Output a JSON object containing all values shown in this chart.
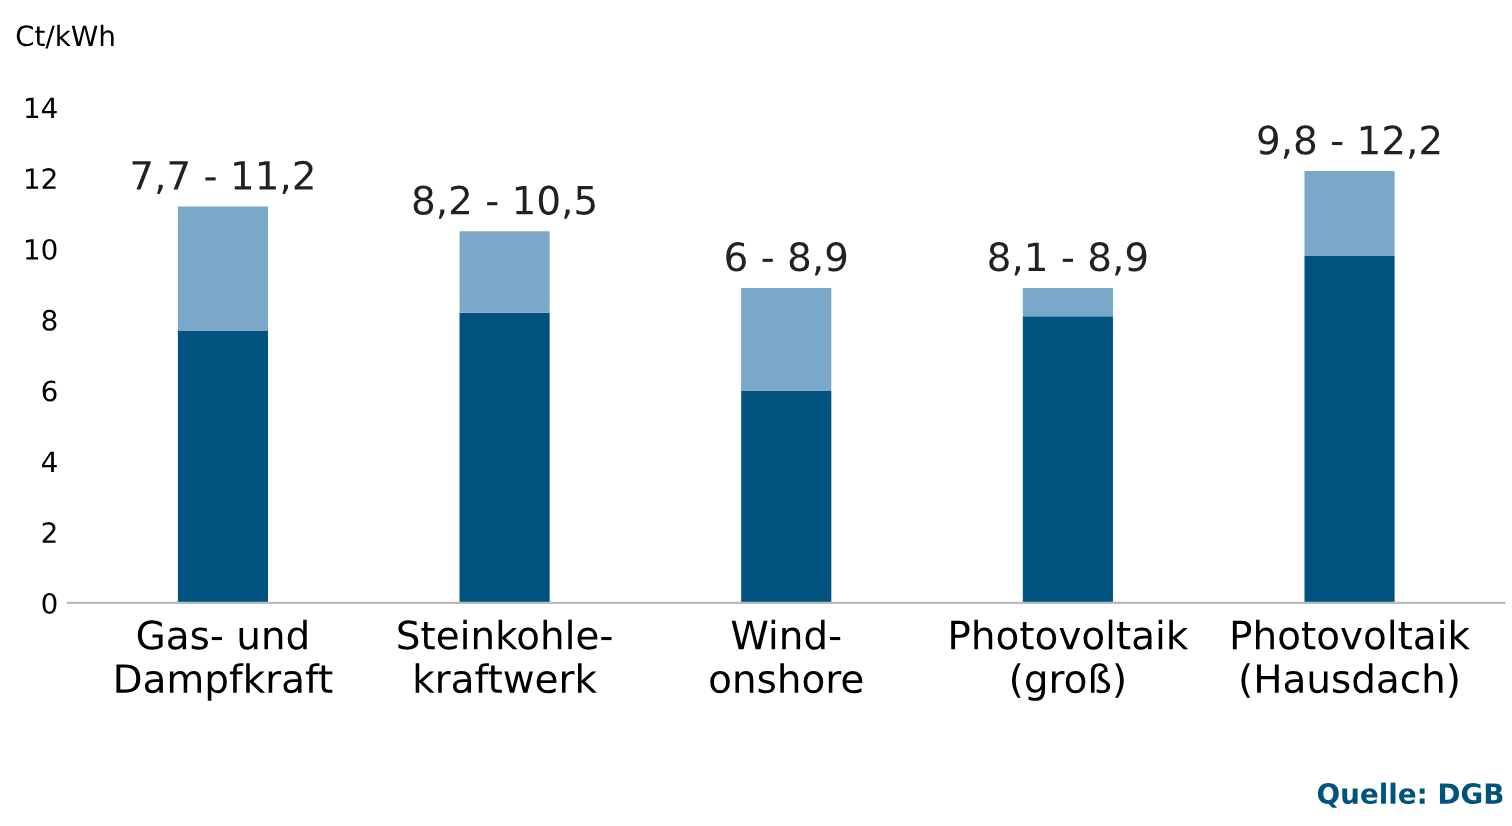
{
  "chart_data": {
    "type": "bar",
    "stacked": true,
    "ylabel": "Ct/kWh",
    "categories": [
      "Gas- und\nDampfkraft",
      "Steinkohle-\nkraftwerk",
      "Wind-\nonshore",
      "Photovoltaik\n(groß)",
      "Photovoltaik\n(Hausdach)"
    ],
    "series": [
      {
        "color": "#00527f",
        "values": [
          7.7,
          8.2,
          6,
          8.1,
          9.8
        ]
      },
      {
        "color": "#7ba7c9",
        "values": [
          3.5,
          2.3,
          2.9,
          0.8,
          2.4
        ]
      }
    ],
    "totals": [
      "7,7 - 11,2",
      "8,2 - 10,5",
      "6 - 8,9",
      "8,1 - 8,9",
      "9,8 - 12,2"
    ],
    "ylim": [
      0,
      14
    ],
    "yticks": [
      0,
      2,
      4,
      6,
      8,
      10,
      12,
      14
    ],
    "grid": false,
    "legend": false,
    "annotations": [
      "Quelle: DGB"
    ]
  }
}
